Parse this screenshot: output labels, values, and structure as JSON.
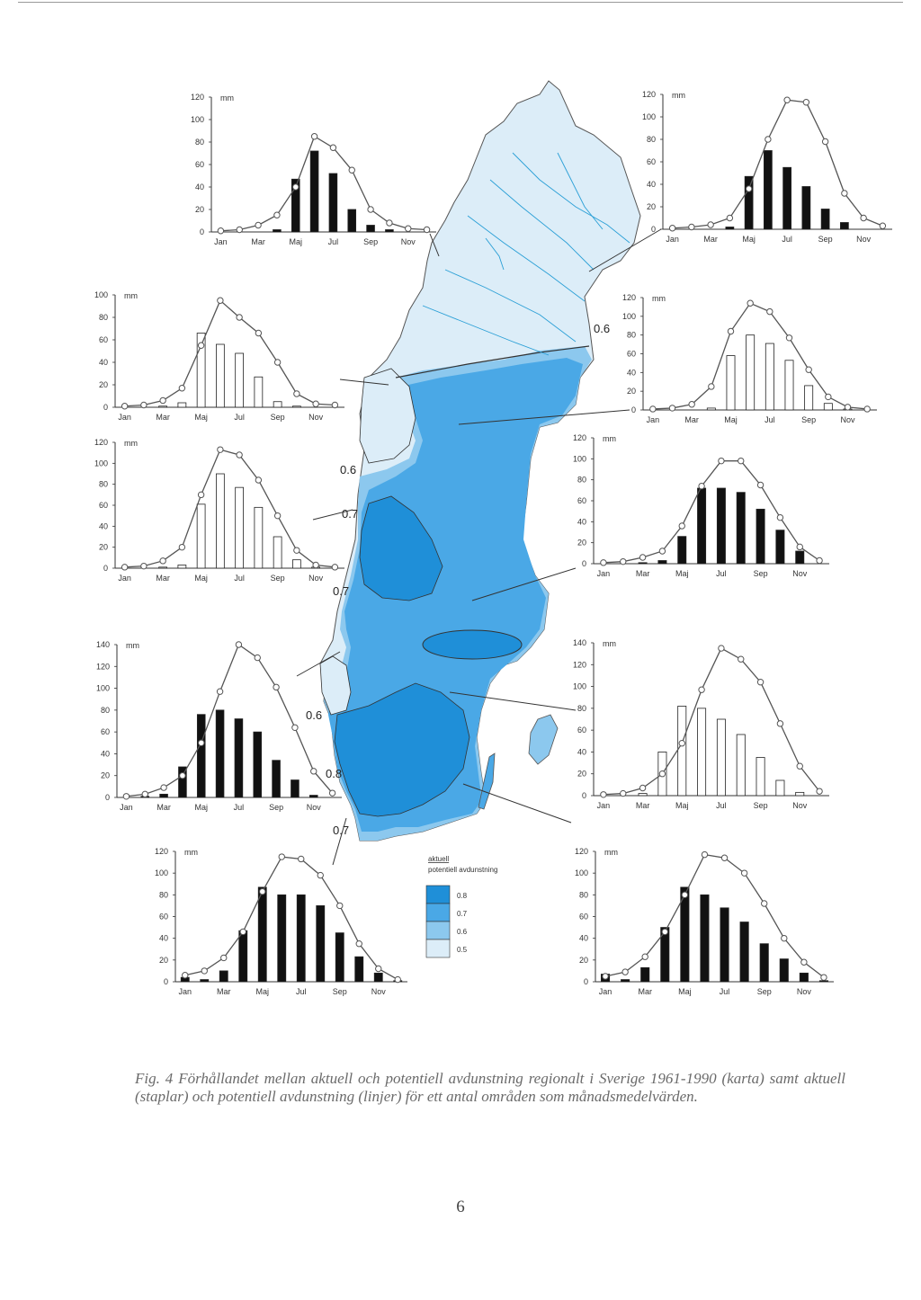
{
  "figure": {
    "caption": "Fig. 4  Förhållandet mellan aktuell och potentiell avdunstning regionalt i Sverige 1961-1990 (karta) samt aktuell (staplar) och potentiell avdunstning (linjer) för ett antal områden som månadsmedelvärden.",
    "page_number": "6",
    "colors": {
      "class_0_8": "#1f8fd8",
      "class_0_7": "#4aa8e6",
      "class_0_6": "#8cc8ee",
      "class_0_5": "#dcedf8",
      "bar_dark": "#111111",
      "bar_light": "#ffffff",
      "line": "#555555"
    }
  },
  "map": {
    "isoline_labels": [
      "0.6",
      "0.6",
      "0.7",
      "0.7",
      "0.6",
      "0.8",
      "0.7"
    ],
    "legend": {
      "title_top": "aktuell",
      "title_bottom": "potentiell avdunstning",
      "classes": [
        "0.8",
        "0.7",
        "0.6",
        "0.5"
      ]
    }
  },
  "chart_data": [
    {
      "type": "bar",
      "id": "c1",
      "unit": "mm",
      "ylim": [
        0,
        120
      ],
      "yticks": [
        0,
        20,
        40,
        60,
        80,
        100,
        120
      ],
      "categories": [
        "Jan",
        "Feb",
        "Mar",
        "Apr",
        "Maj",
        "Jun",
        "Jul",
        "Aug",
        "Sep",
        "Okt",
        "Nov",
        "Dec"
      ],
      "month_labels": [
        "Jan",
        "Mar",
        "Maj",
        "Jul",
        "Sep",
        "Nov"
      ],
      "bar_style": "dark",
      "series": [
        {
          "values": [
            0,
            0,
            0,
            2,
            47,
            72,
            52,
            20,
            6,
            2,
            0,
            0
          ]
        },
        {
          "values": [
            1,
            2,
            6,
            15,
            40,
            85,
            75,
            55,
            20,
            8,
            3,
            2
          ]
        }
      ]
    },
    {
      "type": "bar",
      "id": "c2",
      "unit": "mm",
      "ylim": [
        0,
        120
      ],
      "yticks": [
        0,
        20,
        40,
        60,
        80,
        100,
        120
      ],
      "categories": [
        "Jan",
        "Feb",
        "Mar",
        "Apr",
        "Maj",
        "Jun",
        "Jul",
        "Aug",
        "Sep",
        "Okt",
        "Nov",
        "Dec"
      ],
      "month_labels": [
        "Jan",
        "Mar",
        "Maj",
        "Jul",
        "Sep",
        "Nov"
      ],
      "bar_style": "dark",
      "series": [
        {
          "values": [
            0,
            0,
            0,
            2,
            47,
            70,
            55,
            38,
            18,
            6,
            0,
            0
          ]
        },
        {
          "values": [
            1,
            2,
            4,
            10,
            36,
            80,
            115,
            113,
            78,
            32,
            10,
            3
          ]
        }
      ]
    },
    {
      "type": "bar",
      "id": "c3",
      "unit": "mm",
      "ylim": [
        0,
        100
      ],
      "yticks": [
        0,
        20,
        40,
        60,
        80,
        100
      ],
      "categories": [
        "Jan",
        "Feb",
        "Mar",
        "Apr",
        "Maj",
        "Jun",
        "Jul",
        "Aug",
        "Sep",
        "Okt",
        "Nov",
        "Dec"
      ],
      "month_labels": [
        "Jan",
        "Mar",
        "Maj",
        "Jul",
        "Sep",
        "Nov"
      ],
      "bar_style": "light",
      "series": [
        {
          "values": [
            0,
            0,
            1,
            4,
            66,
            56,
            48,
            27,
            5,
            1,
            0,
            0
          ]
        },
        {
          "values": [
            1,
            2,
            6,
            17,
            55,
            95,
            80,
            66,
            40,
            12,
            3,
            2
          ]
        }
      ]
    },
    {
      "type": "bar",
      "id": "c4",
      "unit": "mm",
      "ylim": [
        0,
        120
      ],
      "yticks": [
        0,
        20,
        40,
        60,
        80,
        100,
        120
      ],
      "categories": [
        "Jan",
        "Feb",
        "Mar",
        "Apr",
        "Maj",
        "Jun",
        "Jul",
        "Aug",
        "Sep",
        "Okt",
        "Nov",
        "Dec"
      ],
      "month_labels": [
        "Jan",
        "Mar",
        "Maj",
        "Jul",
        "Sep",
        "Nov"
      ],
      "bar_style": "light",
      "series": [
        {
          "values": [
            0,
            0,
            0,
            2,
            58,
            80,
            71,
            53,
            26,
            7,
            1,
            0
          ]
        },
        {
          "values": [
            1,
            2,
            6,
            25,
            84,
            114,
            105,
            77,
            43,
            14,
            3,
            1
          ]
        }
      ]
    },
    {
      "type": "bar",
      "id": "c5",
      "unit": "mm",
      "ylim": [
        0,
        120
      ],
      "yticks": [
        0,
        20,
        40,
        60,
        80,
        100,
        120
      ],
      "categories": [
        "Jan",
        "Feb",
        "Mar",
        "Apr",
        "Maj",
        "Jun",
        "Jul",
        "Aug",
        "Sep",
        "Okt",
        "Nov",
        "Dec"
      ],
      "month_labels": [
        "Jan",
        "Mar",
        "Maj",
        "Jul",
        "Sep",
        "Nov"
      ],
      "bar_style": "light",
      "series": [
        {
          "values": [
            0,
            0,
            1,
            3,
            61,
            90,
            77,
            58,
            30,
            8,
            1,
            0
          ]
        },
        {
          "values": [
            1,
            2,
            7,
            20,
            70,
            113,
            108,
            84,
            50,
            17,
            3,
            1
          ]
        }
      ]
    },
    {
      "type": "bar",
      "id": "c6",
      "unit": "mm",
      "ylim": [
        0,
        120
      ],
      "yticks": [
        0,
        20,
        40,
        60,
        80,
        100,
        120
      ],
      "categories": [
        "Jan",
        "Feb",
        "Mar",
        "Apr",
        "Maj",
        "Jun",
        "Jul",
        "Aug",
        "Sep",
        "Okt",
        "Nov",
        "Dec"
      ],
      "month_labels": [
        "Jan",
        "Mar",
        "Maj",
        "Jul",
        "Sep",
        "Nov"
      ],
      "bar_style": "dark",
      "series": [
        {
          "values": [
            0,
            0,
            1,
            3,
            26,
            72,
            72,
            68,
            52,
            32,
            12,
            0
          ]
        },
        {
          "values": [
            1,
            2,
            6,
            12,
            36,
            74,
            98,
            98,
            75,
            44,
            16,
            3
          ]
        }
      ]
    },
    {
      "type": "bar",
      "id": "c7",
      "unit": "mm",
      "ylim": [
        0,
        140
      ],
      "yticks": [
        0,
        20,
        40,
        60,
        80,
        100,
        120,
        140
      ],
      "categories": [
        "Jan",
        "Feb",
        "Mar",
        "Apr",
        "Maj",
        "Jun",
        "Jul",
        "Aug",
        "Sep",
        "Okt",
        "Nov",
        "Dec"
      ],
      "month_labels": [
        "Jan",
        "Mar",
        "Maj",
        "Jul",
        "Sep",
        "Nov"
      ],
      "bar_style": "dark",
      "series": [
        {
          "values": [
            0,
            1,
            3,
            28,
            76,
            80,
            72,
            60,
            34,
            16,
            2,
            0
          ]
        },
        {
          "values": [
            1,
            3,
            9,
            20,
            50,
            97,
            140,
            128,
            101,
            64,
            24,
            4
          ]
        }
      ]
    },
    {
      "type": "bar",
      "id": "c8",
      "unit": "mm",
      "ylim": [
        0,
        140
      ],
      "yticks": [
        0,
        20,
        40,
        60,
        80,
        100,
        120,
        140
      ],
      "categories": [
        "Jan",
        "Feb",
        "Mar",
        "Apr",
        "Maj",
        "Jun",
        "Jul",
        "Aug",
        "Sep",
        "Okt",
        "Nov",
        "Dec"
      ],
      "month_labels": [
        "Jan",
        "Mar",
        "Maj",
        "Jul",
        "Sep",
        "Nov"
      ],
      "bar_style": "light",
      "series": [
        {
          "values": [
            0,
            0,
            2,
            40,
            82,
            80,
            70,
            56,
            35,
            14,
            3,
            0
          ]
        },
        {
          "values": [
            1,
            2,
            7,
            20,
            48,
            97,
            135,
            125,
            104,
            66,
            27,
            4
          ]
        }
      ]
    },
    {
      "type": "bar",
      "id": "c9",
      "unit": "mm",
      "ylim": [
        0,
        120
      ],
      "yticks": [
        0,
        20,
        40,
        60,
        80,
        100,
        120
      ],
      "categories": [
        "Jan",
        "Feb",
        "Mar",
        "Apr",
        "Maj",
        "Jun",
        "Jul",
        "Aug",
        "Sep",
        "Okt",
        "Nov",
        "Dec"
      ],
      "month_labels": [
        "Jan",
        "Mar",
        "Maj",
        "Jul",
        "Sep",
        "Nov"
      ],
      "bar_style": "dark",
      "series": [
        {
          "values": [
            4,
            2,
            10,
            47,
            87,
            80,
            80,
            70,
            45,
            23,
            8,
            1
          ]
        },
        {
          "values": [
            6,
            10,
            22,
            46,
            83,
            115,
            113,
            98,
            70,
            35,
            12,
            2
          ]
        }
      ]
    },
    {
      "type": "bar",
      "id": "c10",
      "unit": "mm",
      "ylim": [
        0,
        120
      ],
      "yticks": [
        0,
        20,
        40,
        60,
        80,
        100,
        120
      ],
      "categories": [
        "Jan",
        "Feb",
        "Mar",
        "Apr",
        "Maj",
        "Jun",
        "Jul",
        "Aug",
        "Sep",
        "Okt",
        "Nov",
        "Dec"
      ],
      "month_labels": [
        "Jan",
        "Mar",
        "Maj",
        "Jul",
        "Sep",
        "Nov"
      ],
      "bar_style": "dark",
      "series": [
        {
          "values": [
            7,
            2,
            13,
            50,
            87,
            80,
            68,
            55,
            35,
            21,
            8,
            1
          ]
        },
        {
          "values": [
            5,
            9,
            23,
            46,
            80,
            117,
            114,
            100,
            72,
            40,
            18,
            4
          ]
        }
      ]
    }
  ]
}
